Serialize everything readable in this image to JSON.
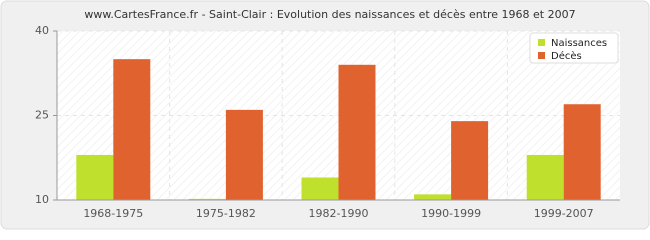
{
  "chart_data": {
    "type": "bar",
    "title": "www.CartesFrance.fr - Saint-Clair : Evolution des naissances et décès entre 1968 et 2007",
    "categories": [
      "1968-1975",
      "1975-1982",
      "1982-1990",
      "1990-1999",
      "1999-2007"
    ],
    "series": [
      {
        "name": "Naissances",
        "color": "#bfe12e",
        "values": [
          18,
          10.2,
          14,
          11,
          18
        ]
      },
      {
        "name": "Décès",
        "color": "#e0632f",
        "values": [
          35,
          26,
          34,
          24,
          27
        ]
      }
    ],
    "ylim": [
      10,
      40
    ],
    "yticks": [
      10,
      25,
      40
    ],
    "grid": true,
    "legend": "top-right"
  }
}
